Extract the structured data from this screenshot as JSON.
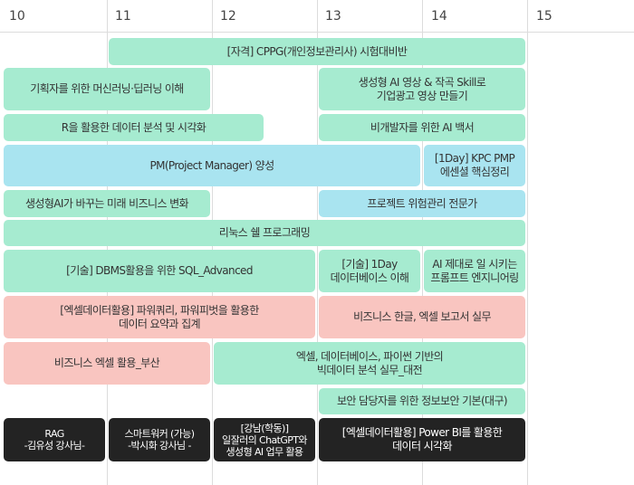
{
  "days": [
    "10",
    "11",
    "12",
    "13",
    "14",
    "15"
  ],
  "colors": {
    "green": "#a6ebd0",
    "blue": "#a9e4f0",
    "pink": "#f9c5c0",
    "black": "#232323"
  },
  "events": [
    {
      "title": "[자격] CPPG(개인정보관리사) 시험대비반",
      "color": "green"
    },
    {
      "title": "기획자를 위한 머신러닝·딥러닝 이해",
      "color": "green"
    },
    {
      "title": "생성형 AI 영상 & 작곡 Skill로\n기업광고 영상 만들기",
      "color": "green"
    },
    {
      "title": "R을 활용한 데이터 분석 및 시각화",
      "color": "green"
    },
    {
      "title": "비개발자를 위한 AI 백서",
      "color": "green"
    },
    {
      "title": "PM(Project Manager) 양성",
      "color": "blue"
    },
    {
      "title": "[1Day] KPC PMP\n에센셜 핵심정리",
      "color": "blue"
    },
    {
      "title": "생성형AI가 바꾸는 미래 비즈니스 변화",
      "color": "green"
    },
    {
      "title": "프로젝트 위험관리 전문가",
      "color": "blue"
    },
    {
      "title": "리눅스 쉘 프로그래밍",
      "color": "green"
    },
    {
      "title": "[기술] DBMS활용을 위한 SQL_Advanced",
      "color": "green"
    },
    {
      "title": "[기술] 1Day\n데이터베이스 이해",
      "color": "green"
    },
    {
      "title": "AI 제대로 일 시키는\n프롬프트 엔지니어링",
      "color": "green"
    },
    {
      "title": "[엑셀데이터활용] 파워쿼리, 파워피벗을 활용한\n데이터 요약과 집계",
      "color": "pink"
    },
    {
      "title": "비즈니스 한글, 엑셀 보고서 실무",
      "color": "pink"
    },
    {
      "title": "비즈니스 엑셀 활용_부산",
      "color": "pink"
    },
    {
      "title": "엑셀, 데이터베이스, 파이썬 기반의\n빅데이터 분석 실무_대전",
      "color": "green"
    },
    {
      "title": "보안 담당자를 위한 정보보안 기본(대구)",
      "color": "green"
    },
    {
      "title": "RAG\n-김유성 강사님-",
      "color": "black"
    },
    {
      "title": "스마트워커 (가능)\n-박시화 강사님 -",
      "color": "black"
    },
    {
      "title": "[강남(학동)]\n일잘러의 ChatGPT와\n생성형 AI 업무 활용",
      "color": "black"
    },
    {
      "title": "[엑셀데이터활용] Power BI를 활용한\n데이터 시각화",
      "color": "black"
    }
  ]
}
